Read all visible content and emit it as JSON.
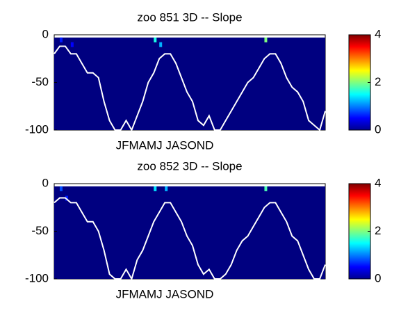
{
  "chart_data": [
    {
      "type": "heatmap",
      "title": "zoo  851 3D   -- Slope",
      "xlabel": "JFMAMJ JASOND",
      "ylim": [
        -100,
        0
      ],
      "yticks": [
        0,
        -50,
        -100
      ],
      "clim": [
        0,
        4
      ],
      "cticks": [
        0,
        2,
        4
      ],
      "background_value": 0,
      "spots": [
        {
          "x": 1,
          "depth": 5,
          "value": 0.6
        },
        {
          "x": 3,
          "depth": 10,
          "value": 0.5
        },
        {
          "x": 18,
          "depth": 5,
          "value": 1.6
        },
        {
          "x": 19,
          "depth": 10,
          "value": 1.2
        },
        {
          "x": 38,
          "depth": 5,
          "value": 2
        }
      ],
      "line": {
        "color": "#ffffff",
        "values": [
          -20,
          -12,
          -12,
          -20,
          -20,
          -30,
          -40,
          -40,
          -45,
          -70,
          -90,
          -100,
          -100,
          -90,
          -100,
          -85,
          -70,
          -50,
          -40,
          -25,
          -20,
          -20,
          -30,
          -45,
          -60,
          -70,
          -90,
          -95,
          -85,
          -100,
          -100,
          -90,
          -80,
          -70,
          -60,
          -50,
          -45,
          -35,
          -25,
          -20,
          -20,
          -30,
          -45,
          -55,
          -60,
          -70,
          -90,
          -95,
          -100,
          -80
        ]
      }
    },
    {
      "type": "heatmap",
      "title": "zoo  852 3D   -- Slope",
      "xlabel": "JFMAMJ JASOND",
      "ylim": [
        -100,
        0
      ],
      "yticks": [
        0,
        -50,
        -100
      ],
      "clim": [
        0,
        4
      ],
      "cticks": [
        0,
        2,
        4
      ],
      "background_value": 0,
      "spots": [
        {
          "x": 1,
          "depth": 5,
          "value": 0.8
        },
        {
          "x": 2,
          "depth": 15,
          "value": 0.6
        },
        {
          "x": 18,
          "depth": 5,
          "value": 1.4
        },
        {
          "x": 20,
          "depth": 5,
          "value": 1.2
        },
        {
          "x": 38,
          "depth": 5,
          "value": 1.8
        }
      ],
      "line": {
        "color": "#ffffff",
        "values": [
          -20,
          -15,
          -15,
          -20,
          -20,
          -30,
          -40,
          -40,
          -50,
          -70,
          -95,
          -100,
          -100,
          -90,
          -100,
          -80,
          -70,
          -55,
          -40,
          -30,
          -20,
          -20,
          -30,
          -40,
          -55,
          -65,
          -85,
          -95,
          -90,
          -100,
          -100,
          -95,
          -85,
          -70,
          -60,
          -55,
          -45,
          -35,
          -25,
          -20,
          -20,
          -30,
          -40,
          -55,
          -60,
          -75,
          -90,
          -100,
          -100,
          -85
        ]
      }
    }
  ]
}
